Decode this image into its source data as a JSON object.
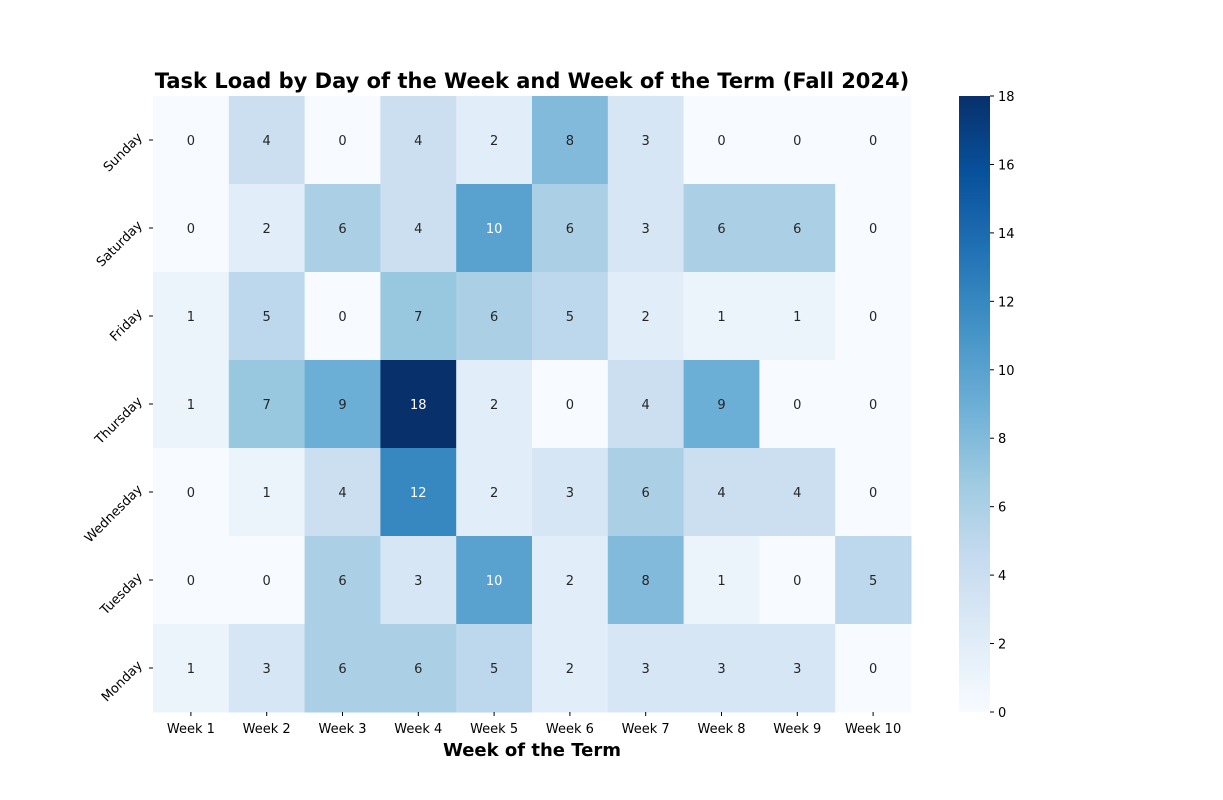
{
  "chart_data": {
    "type": "heatmap",
    "title": "Task Load by Day of the Week and Week of the Term (Fall 2024)",
    "xlabel": "Week of the Term",
    "ylabel": "",
    "x_categories": [
      "Week 1",
      "Week 2",
      "Week 3",
      "Week 4",
      "Week 5",
      "Week 6",
      "Week 7",
      "Week 8",
      "Week 9",
      "Week 10"
    ],
    "y_categories": [
      "Sunday",
      "Saturday",
      "Friday",
      "Thursday",
      "Wednesday",
      "Tuesday",
      "Monday"
    ],
    "values": [
      [
        0,
        4,
        0,
        4,
        2,
        8,
        3,
        0,
        0,
        0
      ],
      [
        0,
        2,
        6,
        4,
        10,
        6,
        3,
        6,
        6,
        0
      ],
      [
        1,
        5,
        0,
        7,
        6,
        5,
        2,
        1,
        1,
        0
      ],
      [
        1,
        7,
        9,
        18,
        2,
        0,
        4,
        9,
        0,
        0
      ],
      [
        0,
        1,
        4,
        12,
        2,
        3,
        6,
        4,
        4,
        0
      ],
      [
        0,
        0,
        6,
        3,
        10,
        2,
        8,
        1,
        0,
        5
      ],
      [
        1,
        3,
        6,
        6,
        5,
        2,
        3,
        3,
        3,
        0
      ]
    ],
    "colormap": "Blues",
    "colorbar": {
      "range": [
        0,
        18
      ],
      "ticks": [
        "0",
        "2",
        "4",
        "6",
        "8",
        "10",
        "12",
        "14",
        "16",
        "18"
      ]
    },
    "annotations": true,
    "grid": false
  }
}
